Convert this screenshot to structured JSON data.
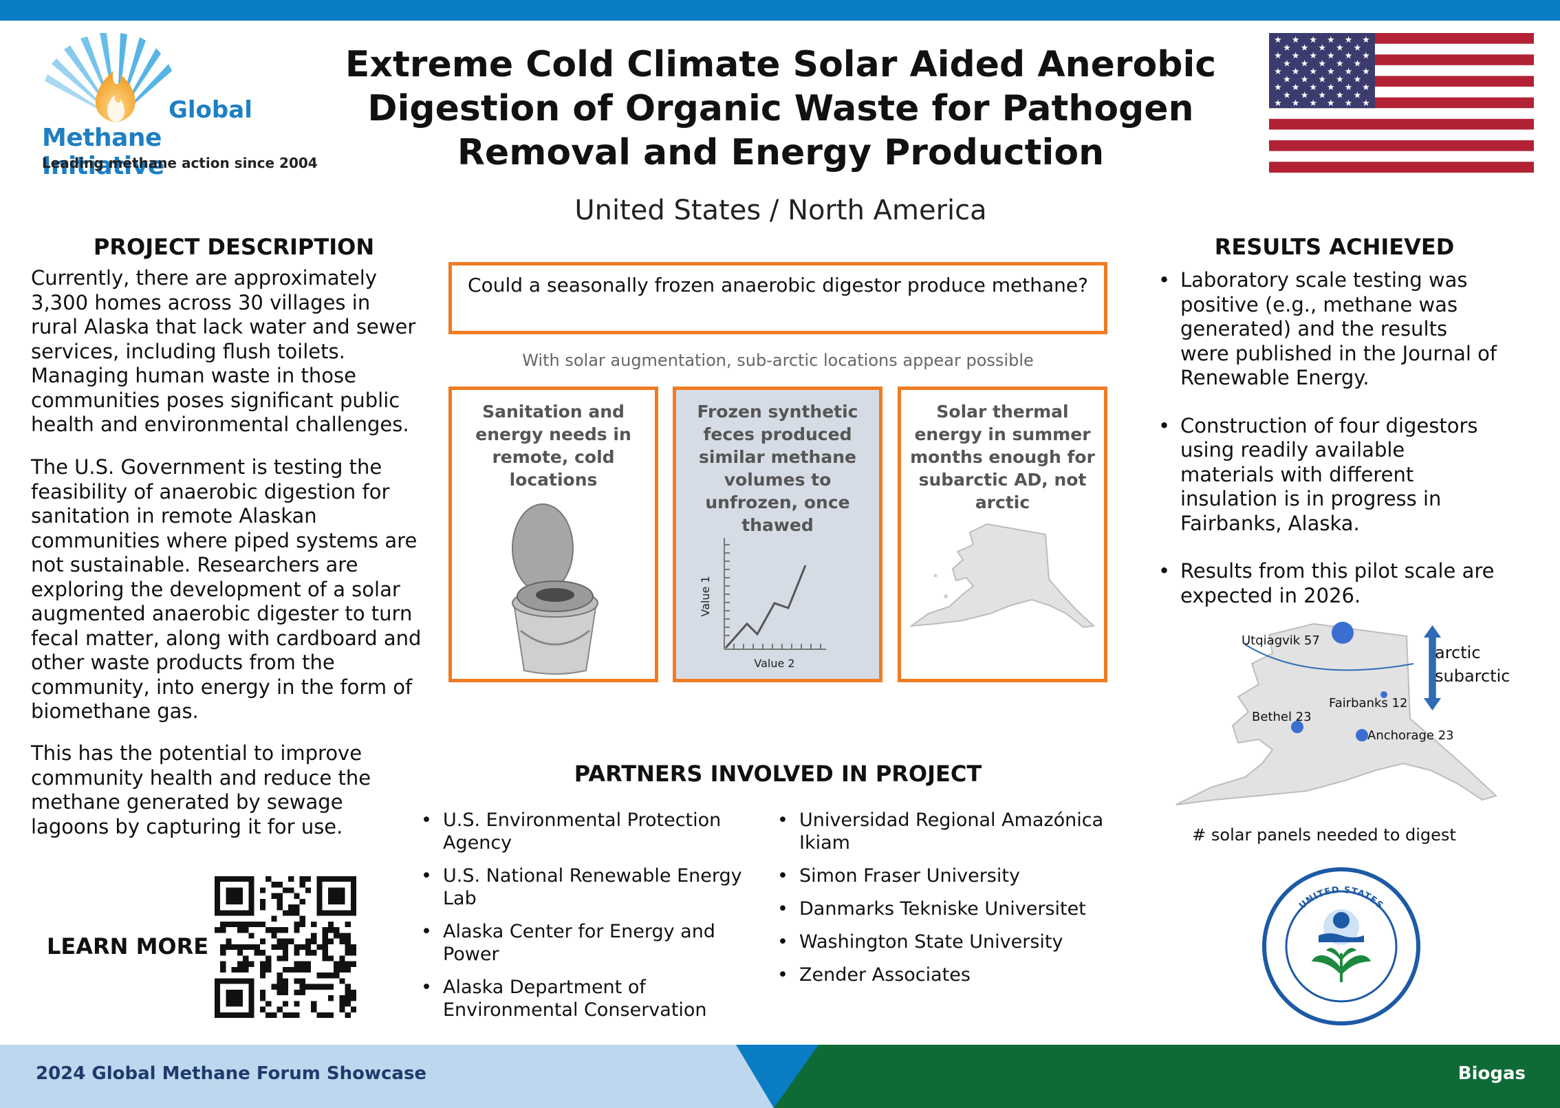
{
  "logo": {
    "name_line1": "Global",
    "name_line2": "Methane Initiative",
    "tagline": "Leading methane action since 2004"
  },
  "title": "Extreme Cold Climate Solar Aided Anerobic Digestion of Organic Waste for Pathogen Removal and Energy Production",
  "subtitle": "United States / North America",
  "project_description": {
    "heading": "PROJECT DESCRIPTION",
    "paragraphs": [
      "Currently, there are approximately 3,300 homes across 30 villages in rural Alaska that lack water and sewer services, including flush toilets. Managing human waste in those communities poses significant public health and environmental challenges.",
      "The U.S. Government is testing the feasibility of anaerobic digestion for sanitation in remote Alaskan communities where piped systems are not sustainable. Researchers are exploring the development of a solar augmented anaerobic digester to turn fecal matter, along with cardboard and other waste products from the community, into energy in the form of biomethane gas.",
      "This has the potential to improve community health and reduce the methane generated by sewage lagoons by capturing it for use."
    ]
  },
  "learn_more": "LEARN MORE",
  "question": "Could a seasonally frozen anaerobic digestor produce methane?",
  "question_note": "With solar augmentation, sub-arctic locations appear possible",
  "cards": [
    {
      "text": "Sanitation and energy needs in remote, cold locations",
      "icon": "bucket-toilet-icon"
    },
    {
      "text": "Frozen synthetic feces produced similar methane volumes to unfrozen, once thawed",
      "icon": "line-chart-icon",
      "x_label": "Value 2",
      "y_label": "Value 1"
    },
    {
      "text": "Solar thermal energy in summer months enough for subarctic AD, not arctic",
      "icon": "alaska-map-icon"
    }
  ],
  "partners": {
    "heading": "PARTNERS INVOLVED IN PROJECT",
    "column1": [
      "U.S. Environmental Protection Agency",
      "U.S. National Renewable Energy Lab",
      "Alaska Center for Energy and Power",
      "Alaska Department of Environmental Conservation"
    ],
    "column2": [
      "Universidad Regional Amazónica Ikiam",
      "Simon Fraser University",
      "Danmarks Tekniske Universitet",
      "Washington State University",
      "Zender Associates"
    ]
  },
  "results": {
    "heading": "RESULTS ACHIEVED",
    "items": [
      "Laboratory scale testing was positive (e.g., methane was generated) and the results were published in the Journal of Renewable Energy.",
      "Construction of four digestors using readily available materials with different insulation is in progress in Fairbanks, Alaska.",
      "Results from this pilot scale are expected in 2026."
    ]
  },
  "map": {
    "cities": [
      {
        "label": "Utqiagvik 57",
        "panels": 57
      },
      {
        "label": "Fairbanks 12",
        "panels": 12
      },
      {
        "label": "Bethel 23",
        "panels": 23
      },
      {
        "label": "Anchorage 23",
        "panels": 23
      }
    ],
    "zone_top": "arctic",
    "zone_bottom": "subarctic",
    "caption": "# solar panels needed to digest"
  },
  "footer": {
    "event": "2024 Global Methane Forum Showcase",
    "category": "Biogas"
  },
  "colors": {
    "accent_orange": "#f07b22",
    "top_bar_blue": "#0a7cc4",
    "footer_light_blue": "#bdd7ee",
    "footer_green": "#0e6b35",
    "marker_blue": "#3a6fd0"
  }
}
